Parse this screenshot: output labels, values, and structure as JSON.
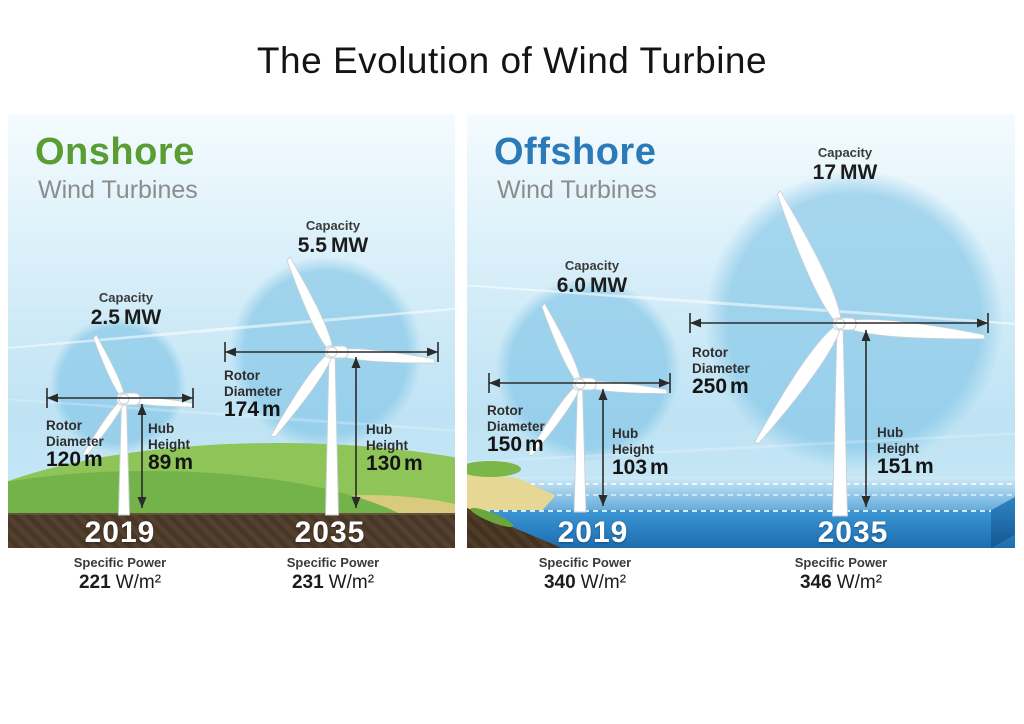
{
  "title": "The Evolution of Wind Turbine",
  "panels": [
    {
      "id": "onshore",
      "heading": "Onshore",
      "subheading": "Wind Turbines",
      "turbines": [
        {
          "year": "2019",
          "capacity": {
            "label": "Capacity",
            "value": "2.5",
            "unit": "MW"
          },
          "rotor": {
            "line1": "Rotor",
            "line2": "Diameter",
            "value": "120",
            "unit": "m"
          },
          "hub": {
            "line1": "Hub",
            "line2": "Height",
            "value": "89",
            "unit": "m"
          },
          "specific_power": {
            "label": "Specific Power",
            "value": "221",
            "unit": "W/m²"
          }
        },
        {
          "year": "2035",
          "capacity": {
            "label": "Capacity",
            "value": "5.5",
            "unit": "MW"
          },
          "rotor": {
            "line1": "Rotor",
            "line2": "Diameter",
            "value": "174",
            "unit": "m"
          },
          "hub": {
            "line1": "Hub",
            "line2": "Height",
            "value": "130",
            "unit": "m"
          },
          "specific_power": {
            "label": "Specific Power",
            "value": "231",
            "unit": "W/m²"
          }
        }
      ]
    },
    {
      "id": "offshore",
      "heading": "Offshore",
      "subheading": "Wind Turbines",
      "turbines": [
        {
          "year": "2019",
          "capacity": {
            "label": "Capacity",
            "value": "6.0",
            "unit": "MW"
          },
          "rotor": {
            "line1": "Rotor",
            "line2": "Diameter",
            "value": "150",
            "unit": "m"
          },
          "hub": {
            "line1": "Hub",
            "line2": "Height",
            "value": "103",
            "unit": "m"
          },
          "specific_power": {
            "label": "Specific Power",
            "value": "340",
            "unit": "W/m²"
          }
        },
        {
          "year": "2035",
          "capacity": {
            "label": "Capacity",
            "value": "17",
            "unit": "MW"
          },
          "rotor": {
            "line1": "Rotor",
            "line2": "Diameter",
            "value": "250",
            "unit": "m"
          },
          "hub": {
            "line1": "Hub",
            "line2": "Height",
            "value": "151",
            "unit": "m"
          },
          "specific_power": {
            "label": "Specific Power",
            "value": "346",
            "unit": "W/m²"
          }
        }
      ]
    }
  ],
  "colors": {
    "onshore_green": "#599d33",
    "offshore_blue": "#2d7ab8",
    "subheading_gray": "#8c8c8c",
    "soil_brown": "#53402e",
    "sea_bar_blue": "#2a80c1",
    "grass_green": "#7ab648",
    "sand": "#e6d795",
    "sky_blue": "#bfe3f4",
    "halo_blue": "#80c4e6",
    "arrow_dark": "#2b2b2b",
    "year_text": "#ffffff"
  }
}
